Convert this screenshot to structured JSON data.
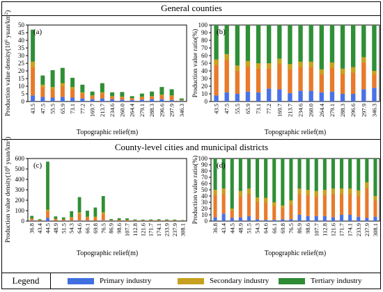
{
  "headers": {
    "general": "General counties",
    "county": "County-level cities and municipal districts"
  },
  "legend": {
    "title": "Legend",
    "items": [
      {
        "name": "Primary industry",
        "color": "#3f6fe0"
      },
      {
        "name": "Secondary industry",
        "color": "#c8a020"
      },
      {
        "name": "Tertiary industry",
        "color": "#2e8b34"
      }
    ]
  },
  "colors": {
    "primary": "#4a72e6",
    "secondary": "#e87a2a",
    "secondary_upper": "#c9a21f",
    "tertiary": "#2f8f36"
  },
  "chart_data": [
    {
      "panel": "(a)",
      "type": "bar",
      "stacked": true,
      "xlabel": "Topographic relief(m)",
      "ylabel": "Production value density(10^6 yuan/km^2)",
      "ylim": [
        0,
        50
      ],
      "yticks": [
        0,
        5,
        10,
        15,
        20,
        25,
        30,
        35,
        40,
        45,
        50
      ],
      "categories": [
        "43.5",
        "47.5",
        "55.5",
        "65.9",
        "73.1",
        "77.2",
        "169.7",
        "213.7",
        "234.6",
        "260.0",
        "264.4",
        "279.1",
        "288.3",
        "296.6",
        "297.9",
        "346.3"
      ],
      "series": [
        {
          "name": "Primary industry",
          "values": [
            4,
            3,
            2.5,
            3,
            2.5,
            2,
            1.5,
            2,
            1.5,
            1.2,
            1,
            1.2,
            1.5,
            1.5,
            1,
            0.5
          ]
        },
        {
          "name": "Secondary industry",
          "values": [
            22,
            8,
            7,
            9,
            7,
            4,
            2.5,
            4,
            2,
            2,
            1.2,
            2,
            2,
            3,
            3,
            0.5
          ]
        },
        {
          "name": "Tertiary industry",
          "values": [
            21,
            6,
            11,
            10,
            6,
            5,
            2.5,
            6,
            2.5,
            3,
            1.3,
            2,
            3,
            5,
            4,
            1
          ]
        }
      ]
    },
    {
      "panel": "(b)",
      "type": "bar",
      "stacked": true,
      "xlabel": "Topographic relief(m)",
      "ylabel": "Production value ratio(%)",
      "ylim": [
        0,
        100
      ],
      "yticks": [
        0,
        10,
        20,
        30,
        40,
        50,
        60,
        70,
        80,
        90,
        100
      ],
      "categories": [
        "43.5",
        "47.5",
        "55.5",
        "65.9",
        "73.1",
        "77.2",
        "169.7",
        "213.7",
        "234.6",
        "260.0",
        "264.4",
        "279.1",
        "288.3",
        "296.6",
        "297.9",
        "346.3"
      ],
      "series": [
        {
          "name": "Primary industry",
          "values": [
            8,
            12,
            10,
            13,
            12,
            17,
            16,
            11,
            14,
            14,
            12,
            13,
            10,
            10,
            16,
            18
          ]
        },
        {
          "name": "Secondary industry",
          "values": [
            47,
            50,
            37,
            40,
            38,
            33,
            40,
            38,
            38,
            38,
            30,
            38,
            33,
            35,
            42,
            22
          ]
        },
        {
          "name": "Tertiary industry",
          "values": [
            45,
            38,
            53,
            47,
            50,
            50,
            44,
            51,
            48,
            48,
            58,
            49,
            57,
            55,
            42,
            60
          ]
        }
      ]
    },
    {
      "panel": "(c)",
      "type": "bar",
      "stacked": true,
      "xlabel": "Topographic relief(m)",
      "ylabel": "Production value density(10^6 yuan/km^2)",
      "ylim": [
        0,
        600
      ],
      "yticks": [
        0,
        100,
        200,
        300,
        400,
        500,
        600
      ],
      "categories": [
        "36.8",
        "43.4",
        "44.5",
        "48.9",
        "51.5",
        "54.3",
        "64.6",
        "66.1",
        "69.8",
        "76.5",
        "86.9",
        "98.6",
        "107.7",
        "112.8",
        "121.6",
        "171.7",
        "174.1",
        "233.9",
        "237.9",
        "308.1"
      ],
      "series": [
        {
          "name": "Primary industry",
          "values": [
            4,
            2,
            30,
            2,
            2,
            3,
            4,
            3,
            2,
            4,
            3,
            2,
            1,
            1,
            1,
            1,
            1,
            1,
            1,
            1
          ]
        },
        {
          "name": "Secondary industry",
          "values": [
            22,
            8,
            80,
            20,
            14,
            35,
            80,
            38,
            40,
            80,
            8,
            10,
            10,
            7,
            6,
            7,
            8,
            7,
            7,
            4
          ]
        },
        {
          "name": "Tertiary industry",
          "values": [
            24,
            8,
            460,
            23,
            19,
            57,
            146,
            59,
            88,
            156,
            9,
            16,
            15,
            8,
            7,
            8,
            9,
            8,
            7,
            5
          ]
        }
      ]
    },
    {
      "panel": "(d)",
      "type": "bar",
      "stacked": true,
      "xlabel": "Topographic relief(m)",
      "ylabel": "Production value ratio(%)",
      "ylim": [
        0,
        100
      ],
      "yticks": [
        0,
        10,
        20,
        30,
        40,
        50,
        60,
        70,
        80,
        90,
        100
      ],
      "categories": [
        "36.8",
        "43.4",
        "44.5",
        "48.9",
        "51.5",
        "54.3",
        "64.6",
        "66.1",
        "69.8",
        "76.5",
        "86.9",
        "98.6",
        "107.7",
        "112.8",
        "121.6",
        "171.7",
        "174.1",
        "233.9",
        "237.9",
        "308.1"
      ],
      "series": [
        {
          "name": "Primary industry",
          "values": [
            6,
            12,
            5,
            6,
            8,
            3,
            2,
            2,
            3,
            3,
            10,
            8,
            8,
            8,
            6,
            10,
            10,
            7,
            5,
            7
          ]
        },
        {
          "name": "Secondary industry",
          "values": [
            44,
            40,
            15,
            42,
            44,
            35,
            35,
            28,
            22,
            30,
            42,
            42,
            40,
            42,
            46,
            42,
            42,
            42,
            57,
            33
          ]
        },
        {
          "name": "Tertiary industry",
          "values": [
            50,
            48,
            80,
            52,
            48,
            62,
            63,
            70,
            75,
            67,
            48,
            50,
            52,
            50,
            48,
            48,
            48,
            51,
            38,
            60
          ]
        }
      ]
    }
  ]
}
